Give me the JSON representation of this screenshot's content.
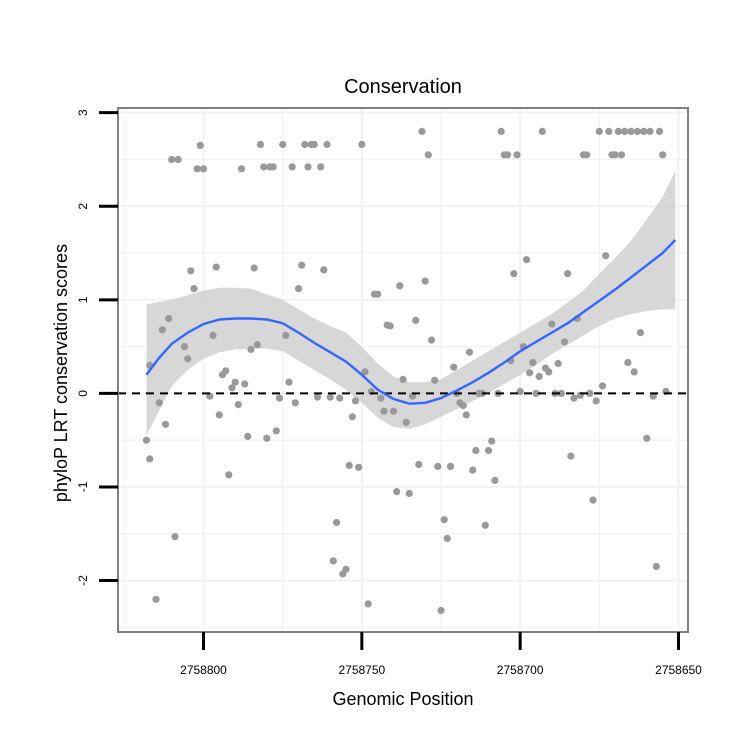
{
  "chart_data": {
    "type": "scatter",
    "title": "Conservation",
    "xlabel": "Genomic Position",
    "ylabel": "phyloP LRT conservation scores",
    "x_reversed": true,
    "xlim": [
      2758827,
      2758647
    ],
    "ylim": [
      -2.55,
      3.05
    ],
    "x_ticks": [
      2758800,
      2758750,
      2758700,
      2758650
    ],
    "x_tick_labels": [
      "2758800",
      "2758750",
      "2758700",
      "2758650"
    ],
    "y_ticks": [
      -2,
      -1,
      0,
      1,
      2,
      3
    ],
    "y_tick_labels": [
      "-2",
      "-1",
      "0",
      "1",
      "2",
      "3"
    ],
    "grid": true,
    "reference_line": {
      "y": 0,
      "style": "dashed"
    },
    "colors": {
      "points": "#999999",
      "smooth_line": "#3366ff",
      "confidence_band": "#d3d3d3",
      "grid": "#f2f2f2",
      "panel_border": "#808080",
      "axis_ticks": "#000000"
    },
    "series": [
      {
        "name": "phyloP scores",
        "kind": "points",
        "points": [
          [
            2758818,
            -0.5
          ],
          [
            2758817,
            -0.7
          ],
          [
            2758817,
            0.3
          ],
          [
            2758815,
            -2.2
          ],
          [
            2758814,
            -0.1
          ],
          [
            2758813,
            0.68
          ],
          [
            2758812,
            -0.33
          ],
          [
            2758811,
            0.8
          ],
          [
            2758810,
            2.5
          ],
          [
            2758809,
            -1.53
          ],
          [
            2758808,
            2.5
          ],
          [
            2758806,
            0.5
          ],
          [
            2758805,
            0.37
          ],
          [
            2758804,
            1.31
          ],
          [
            2758803,
            1.12
          ],
          [
            2758802,
            2.4
          ],
          [
            2758801,
            2.65
          ],
          [
            2758800,
            2.4
          ],
          [
            2758798,
            -0.03
          ],
          [
            2758797,
            0.62
          ],
          [
            2758796,
            1.35
          ],
          [
            2758795,
            -0.23
          ],
          [
            2758794,
            0.2
          ],
          [
            2758793,
            0.24
          ],
          [
            2758792,
            -0.87
          ],
          [
            2758791,
            0.06
          ],
          [
            2758790,
            0.12
          ],
          [
            2758789,
            -0.12
          ],
          [
            2758788,
            2.4
          ],
          [
            2758787,
            0.1
          ],
          [
            2758786,
            -0.46
          ],
          [
            2758785,
            0.47
          ],
          [
            2758784,
            1.34
          ],
          [
            2758783,
            0.52
          ],
          [
            2758782,
            2.66
          ],
          [
            2758781,
            2.42
          ],
          [
            2758780,
            -0.48
          ],
          [
            2758779,
            2.42
          ],
          [
            2758778,
            2.42
          ],
          [
            2758777,
            -0.4
          ],
          [
            2758776,
            -0.05
          ],
          [
            2758775,
            2.66
          ],
          [
            2758774,
            0.62
          ],
          [
            2758773,
            0.12
          ],
          [
            2758772,
            2.42
          ],
          [
            2758771,
            -0.1
          ],
          [
            2758770,
            1.12
          ],
          [
            2758769,
            1.37
          ],
          [
            2758768,
            2.66
          ],
          [
            2758767,
            2.42
          ],
          [
            2758766,
            2.66
          ],
          [
            2758765,
            2.66
          ],
          [
            2758764,
            -0.04
          ],
          [
            2758763,
            2.42
          ],
          [
            2758762,
            1.32
          ],
          [
            2758761,
            2.66
          ],
          [
            2758760,
            -0.04
          ],
          [
            2758759,
            -1.79
          ],
          [
            2758758,
            -1.38
          ],
          [
            2758757,
            -0.05
          ],
          [
            2758756,
            -1.93
          ],
          [
            2758755,
            -1.88
          ],
          [
            2758754,
            -0.77
          ],
          [
            2758753,
            -0.25
          ],
          [
            2758752,
            -0.08
          ],
          [
            2758751,
            -0.79
          ],
          [
            2758750,
            2.66
          ],
          [
            2758749,
            0.23
          ],
          [
            2758748,
            -2.25
          ],
          [
            2758747,
            0.02
          ],
          [
            2758746,
            1.06
          ],
          [
            2758745,
            1.06
          ],
          [
            2758744,
            -0.05
          ],
          [
            2758743,
            -0.19
          ],
          [
            2758742,
            0.73
          ],
          [
            2758741,
            0.72
          ],
          [
            2758740,
            -0.19
          ],
          [
            2758739,
            -1.05
          ],
          [
            2758738,
            1.15
          ],
          [
            2758737,
            0.15
          ],
          [
            2758736,
            -0.31
          ],
          [
            2758735,
            -1.07
          ],
          [
            2758734,
            -0.03
          ],
          [
            2758733,
            0.78
          ],
          [
            2758732,
            -0.76
          ],
          [
            2758731,
            2.8
          ],
          [
            2758730,
            1.2
          ],
          [
            2758729,
            2.55
          ],
          [
            2758728,
            0.57
          ],
          [
            2758727,
            0.14
          ],
          [
            2758726,
            -0.78
          ],
          [
            2758725,
            -2.32
          ],
          [
            2758724,
            -1.35
          ],
          [
            2758723,
            -1.55
          ],
          [
            2758722,
            -0.78
          ],
          [
            2758721,
            0.28
          ],
          [
            2758720,
            0.0
          ],
          [
            2758719,
            -0.1
          ],
          [
            2758718,
            -0.13
          ],
          [
            2758717,
            -0.23
          ],
          [
            2758716,
            0.44
          ],
          [
            2758715,
            -0.82
          ],
          [
            2758714,
            -0.61
          ],
          [
            2758713,
            0.0
          ],
          [
            2758712,
            0.0
          ],
          [
            2758711,
            -1.41
          ],
          [
            2758710,
            -0.61
          ],
          [
            2758709,
            -0.51
          ],
          [
            2758708,
            -0.93
          ],
          [
            2758707,
            0.0
          ],
          [
            2758706,
            2.8
          ],
          [
            2758705,
            2.55
          ],
          [
            2758704,
            2.55
          ],
          [
            2758703,
            0.35
          ],
          [
            2758702,
            1.28
          ],
          [
            2758701,
            2.55
          ],
          [
            2758700,
            0.02
          ],
          [
            2758699,
            0.5
          ],
          [
            2758698,
            1.43
          ],
          [
            2758697,
            0.22
          ],
          [
            2758696,
            0.33
          ],
          [
            2758695,
            0.0
          ],
          [
            2758694,
            0.18
          ],
          [
            2758693,
            2.8
          ],
          [
            2758692,
            0.27
          ],
          [
            2758691,
            0.23
          ],
          [
            2758690,
            0.74
          ],
          [
            2758689,
            0.0
          ],
          [
            2758688,
            0.32
          ],
          [
            2758687,
            0.0
          ],
          [
            2758686,
            0.55
          ],
          [
            2758685,
            1.28
          ],
          [
            2758684,
            -0.67
          ],
          [
            2758683,
            -0.05
          ],
          [
            2758682,
            0.8
          ],
          [
            2758681,
            -0.02
          ],
          [
            2758680,
            2.55
          ],
          [
            2758679,
            2.55
          ],
          [
            2758678,
            0.0
          ],
          [
            2758677,
            -1.14
          ],
          [
            2758676,
            -0.08
          ],
          [
            2758675,
            2.8
          ],
          [
            2758674,
            0.08
          ],
          [
            2758673,
            1.47
          ],
          [
            2758672,
            2.8
          ],
          [
            2758671,
            2.55
          ],
          [
            2758670,
            2.55
          ],
          [
            2758669,
            2.8
          ],
          [
            2758668,
            2.55
          ],
          [
            2758667,
            2.8
          ],
          [
            2758666,
            0.33
          ],
          [
            2758665,
            2.8
          ],
          [
            2758664,
            0.23
          ],
          [
            2758663,
            2.8
          ],
          [
            2758662,
            0.65
          ],
          [
            2758661,
            2.8
          ],
          [
            2758660,
            -0.48
          ],
          [
            2758659,
            2.8
          ],
          [
            2758658,
            -0.03
          ],
          [
            2758657,
            -1.85
          ],
          [
            2758656,
            2.8
          ],
          [
            2758655,
            2.55
          ],
          [
            2758654,
            0.02
          ]
        ]
      },
      {
        "name": "loess smooth",
        "kind": "line",
        "points": [
          [
            2758818,
            0.2
          ],
          [
            2758814,
            0.38
          ],
          [
            2758810,
            0.53
          ],
          [
            2758805,
            0.65
          ],
          [
            2758800,
            0.74
          ],
          [
            2758795,
            0.79
          ],
          [
            2758790,
            0.8
          ],
          [
            2758785,
            0.8
          ],
          [
            2758780,
            0.79
          ],
          [
            2758775,
            0.75
          ],
          [
            2758770,
            0.65
          ],
          [
            2758765,
            0.54
          ],
          [
            2758760,
            0.44
          ],
          [
            2758755,
            0.34
          ],
          [
            2758750,
            0.2
          ],
          [
            2758745,
            0.04
          ],
          [
            2758740,
            -0.06
          ],
          [
            2758735,
            -0.11
          ],
          [
            2758730,
            -0.1
          ],
          [
            2758725,
            -0.05
          ],
          [
            2758720,
            0.03
          ],
          [
            2758715,
            0.12
          ],
          [
            2758710,
            0.22
          ],
          [
            2758705,
            0.33
          ],
          [
            2758700,
            0.45
          ],
          [
            2758695,
            0.55
          ],
          [
            2758690,
            0.65
          ],
          [
            2758685,
            0.75
          ],
          [
            2758680,
            0.87
          ],
          [
            2758675,
            0.99
          ],
          [
            2758670,
            1.11
          ],
          [
            2758665,
            1.24
          ],
          [
            2758660,
            1.37
          ],
          [
            2758655,
            1.5
          ],
          [
            2758651,
            1.64
          ]
        ]
      },
      {
        "name": "confidence upper",
        "kind": "band-upper",
        "points": [
          [
            2758818,
            0.95
          ],
          [
            2758814,
            0.98
          ],
          [
            2758810,
            1.0
          ],
          [
            2758805,
            1.05
          ],
          [
            2758800,
            1.1
          ],
          [
            2758795,
            1.13
          ],
          [
            2758790,
            1.13
          ],
          [
            2758785,
            1.12
          ],
          [
            2758780,
            1.06
          ],
          [
            2758775,
            1.0
          ],
          [
            2758770,
            0.9
          ],
          [
            2758765,
            0.8
          ],
          [
            2758760,
            0.72
          ],
          [
            2758755,
            0.65
          ],
          [
            2758750,
            0.5
          ],
          [
            2758745,
            0.32
          ],
          [
            2758740,
            0.18
          ],
          [
            2758735,
            0.12
          ],
          [
            2758730,
            0.12
          ],
          [
            2758725,
            0.15
          ],
          [
            2758720,
            0.25
          ],
          [
            2758715,
            0.35
          ],
          [
            2758710,
            0.45
          ],
          [
            2758705,
            0.55
          ],
          [
            2758700,
            0.65
          ],
          [
            2758695,
            0.75
          ],
          [
            2758690,
            0.85
          ],
          [
            2758685,
            0.97
          ],
          [
            2758680,
            1.1
          ],
          [
            2758675,
            1.28
          ],
          [
            2758670,
            1.45
          ],
          [
            2758665,
            1.63
          ],
          [
            2758660,
            1.86
          ],
          [
            2758655,
            2.1
          ],
          [
            2758651,
            2.38
          ]
        ]
      },
      {
        "name": "confidence lower",
        "kind": "band-lower",
        "points": [
          [
            2758818,
            -0.45
          ],
          [
            2758814,
            -0.18
          ],
          [
            2758810,
            0.08
          ],
          [
            2758805,
            0.25
          ],
          [
            2758800,
            0.37
          ],
          [
            2758795,
            0.44
          ],
          [
            2758790,
            0.47
          ],
          [
            2758785,
            0.48
          ],
          [
            2758780,
            0.48
          ],
          [
            2758775,
            0.45
          ],
          [
            2758770,
            0.35
          ],
          [
            2758765,
            0.25
          ],
          [
            2758760,
            0.15
          ],
          [
            2758755,
            0.04
          ],
          [
            2758750,
            -0.1
          ],
          [
            2758745,
            -0.26
          ],
          [
            2758740,
            -0.36
          ],
          [
            2758735,
            -0.38
          ],
          [
            2758730,
            -0.33
          ],
          [
            2758725,
            -0.25
          ],
          [
            2758720,
            -0.17
          ],
          [
            2758715,
            -0.08
          ],
          [
            2758710,
            0.0
          ],
          [
            2758705,
            0.1
          ],
          [
            2758700,
            0.2
          ],
          [
            2758695,
            0.3
          ],
          [
            2758690,
            0.42
          ],
          [
            2758685,
            0.52
          ],
          [
            2758680,
            0.62
          ],
          [
            2758675,
            0.72
          ],
          [
            2758670,
            0.8
          ],
          [
            2758665,
            0.85
          ],
          [
            2758660,
            0.88
          ],
          [
            2758655,
            0.9
          ],
          [
            2758651,
            0.9
          ]
        ]
      }
    ]
  }
}
